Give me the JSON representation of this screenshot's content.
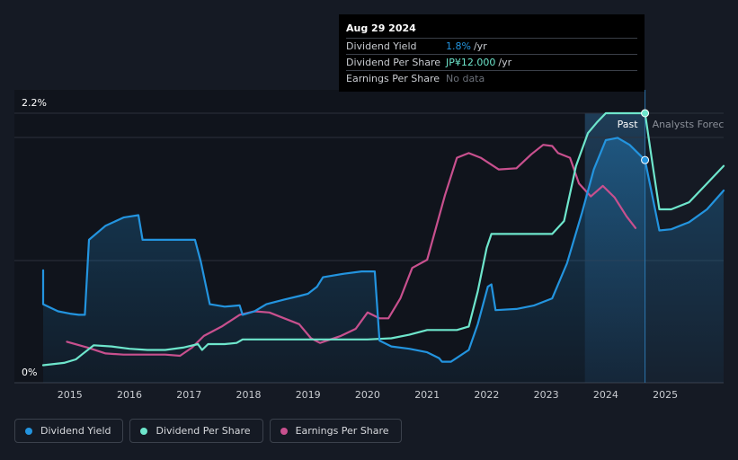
{
  "tooltip": {
    "date": "Aug 29 2024",
    "rows": [
      {
        "label": "Dividend Yield",
        "value": "1.8%",
        "unit": "/yr"
      },
      {
        "label": "Dividend Per Share",
        "value": "JP¥12.000",
        "unit": "/yr"
      },
      {
        "label": "Earnings Per Share",
        "value": "No data",
        "unit": ""
      }
    ]
  },
  "chart": {
    "y_top_label": "2.2%",
    "y_zero_label": "0%",
    "past_label": "Past",
    "forecast_label": "Analysts Forecasts"
  },
  "colors": {
    "background": "#151a24",
    "dividend_yield": "#2394df",
    "dividend_per_share": "#6ee6cc",
    "earnings_per_share": "#c8508e"
  },
  "legend": [
    {
      "label": "Dividend Yield",
      "color": "#2394df"
    },
    {
      "label": "Dividend Per Share",
      "color": "#6ee6cc"
    },
    {
      "label": "Earnings Per Share",
      "color": "#c8508e"
    }
  ],
  "chart_data": {
    "type": "line",
    "x_ticks": [
      "2015",
      "2016",
      "2017",
      "2018",
      "2019",
      "2020",
      "2021",
      "2022",
      "2023",
      "2024",
      "2025"
    ],
    "x_range": [
      2014.55,
      2025.98
    ],
    "y_range": [
      0,
      2.2
    ],
    "y_unit": "%",
    "grid": true,
    "legend_position": "bottom-left",
    "past_until": 2024.66,
    "forecast_start": 2023.65,
    "series": [
      {
        "name": "Dividend Yield",
        "points": [
          [
            2014.55,
            0.86
          ],
          [
            2014.55,
            0.57
          ],
          [
            2014.8,
            0.51
          ],
          [
            2015.0,
            0.49
          ],
          [
            2015.15,
            0.48
          ],
          [
            2015.25,
            0.48
          ],
          [
            2015.32,
            1.12
          ],
          [
            2015.6,
            1.24
          ],
          [
            2015.9,
            1.31
          ],
          [
            2016.15,
            1.33
          ],
          [
            2016.22,
            1.12
          ],
          [
            2016.6,
            1.12
          ],
          [
            2016.9,
            1.12
          ],
          [
            2017.1,
            1.12
          ],
          [
            2017.2,
            0.93
          ],
          [
            2017.35,
            0.57
          ],
          [
            2017.6,
            0.55
          ],
          [
            2017.85,
            0.56
          ],
          [
            2017.9,
            0.48
          ],
          [
            2018.1,
            0.51
          ],
          [
            2018.3,
            0.57
          ],
          [
            2018.6,
            0.61
          ],
          [
            2018.85,
            0.64
          ],
          [
            2019.0,
            0.66
          ],
          [
            2019.15,
            0.72
          ],
          [
            2019.25,
            0.8
          ],
          [
            2019.6,
            0.83
          ],
          [
            2019.9,
            0.85
          ],
          [
            2020.12,
            0.85
          ],
          [
            2020.2,
            0.26
          ],
          [
            2020.4,
            0.21
          ],
          [
            2020.7,
            0.19
          ],
          [
            2021.0,
            0.16
          ],
          [
            2021.2,
            0.11
          ],
          [
            2021.25,
            0.08
          ],
          [
            2021.4,
            0.08
          ],
          [
            2021.7,
            0.18
          ],
          [
            2021.85,
            0.4
          ],
          [
            2022.02,
            0.72
          ],
          [
            2022.08,
            0.74
          ],
          [
            2022.15,
            0.52
          ],
          [
            2022.5,
            0.53
          ],
          [
            2022.8,
            0.56
          ],
          [
            2023.1,
            0.62
          ],
          [
            2023.35,
            0.92
          ],
          [
            2023.6,
            1.35
          ],
          [
            2023.8,
            1.72
          ],
          [
            2024.0,
            1.97
          ],
          [
            2024.2,
            1.99
          ],
          [
            2024.4,
            1.93
          ],
          [
            2024.66,
            1.8
          ],
          [
            2024.9,
            1.2
          ],
          [
            2025.1,
            1.21
          ],
          [
            2025.4,
            1.27
          ],
          [
            2025.7,
            1.38
          ],
          [
            2025.98,
            1.54
          ]
        ]
      },
      {
        "name": "Dividend Per Share",
        "points": [
          [
            2014.55,
            0.05
          ],
          [
            2014.9,
            0.07
          ],
          [
            2015.1,
            0.1
          ],
          [
            2015.2,
            0.14
          ],
          [
            2015.4,
            0.22
          ],
          [
            2015.7,
            0.21
          ],
          [
            2016.0,
            0.19
          ],
          [
            2016.3,
            0.18
          ],
          [
            2016.6,
            0.18
          ],
          [
            2016.9,
            0.2
          ],
          [
            2017.15,
            0.23
          ],
          [
            2017.22,
            0.18
          ],
          [
            2017.32,
            0.23
          ],
          [
            2017.6,
            0.23
          ],
          [
            2017.8,
            0.24
          ],
          [
            2017.9,
            0.27
          ],
          [
            2018.5,
            0.27
          ],
          [
            2019.0,
            0.27
          ],
          [
            2019.5,
            0.27
          ],
          [
            2020.0,
            0.27
          ],
          [
            2020.4,
            0.28
          ],
          [
            2020.7,
            0.31
          ],
          [
            2021.0,
            0.35
          ],
          [
            2021.5,
            0.35
          ],
          [
            2021.7,
            0.38
          ],
          [
            2021.85,
            0.68
          ],
          [
            2022.0,
            1.05
          ],
          [
            2022.08,
            1.17
          ],
          [
            2022.5,
            1.17
          ],
          [
            2022.9,
            1.17
          ],
          [
            2023.1,
            1.17
          ],
          [
            2023.3,
            1.28
          ],
          [
            2023.5,
            1.75
          ],
          [
            2023.7,
            2.03
          ],
          [
            2023.85,
            2.12
          ],
          [
            2024.0,
            2.2
          ],
          [
            2024.33,
            2.2
          ],
          [
            2024.66,
            2.2
          ],
          [
            2024.8,
            1.72
          ],
          [
            2024.9,
            1.38
          ],
          [
            2025.1,
            1.38
          ],
          [
            2025.4,
            1.44
          ],
          [
            2025.7,
            1.6
          ],
          [
            2025.98,
            1.75
          ]
        ]
      },
      {
        "name": "Earnings Per Share",
        "points": [
          [
            2014.95,
            0.25
          ],
          [
            2015.3,
            0.2
          ],
          [
            2015.6,
            0.15
          ],
          [
            2015.9,
            0.14
          ],
          [
            2016.3,
            0.14
          ],
          [
            2016.6,
            0.14
          ],
          [
            2016.85,
            0.13
          ],
          [
            2017.05,
            0.2
          ],
          [
            2017.25,
            0.3
          ],
          [
            2017.55,
            0.38
          ],
          [
            2017.85,
            0.48
          ],
          [
            2018.1,
            0.51
          ],
          [
            2018.35,
            0.5
          ],
          [
            2018.6,
            0.45
          ],
          [
            2018.85,
            0.4
          ],
          [
            2019.05,
            0.28
          ],
          [
            2019.2,
            0.24
          ],
          [
            2019.55,
            0.3
          ],
          [
            2019.8,
            0.36
          ],
          [
            2020.0,
            0.5
          ],
          [
            2020.2,
            0.45
          ],
          [
            2020.35,
            0.45
          ],
          [
            2020.55,
            0.62
          ],
          [
            2020.75,
            0.88
          ],
          [
            2021.0,
            0.95
          ],
          [
            2021.3,
            1.5
          ],
          [
            2021.5,
            1.82
          ],
          [
            2021.7,
            1.86
          ],
          [
            2021.9,
            1.82
          ],
          [
            2022.2,
            1.72
          ],
          [
            2022.5,
            1.73
          ],
          [
            2022.75,
            1.85
          ],
          [
            2022.95,
            1.93
          ],
          [
            2023.1,
            1.92
          ],
          [
            2023.2,
            1.86
          ],
          [
            2023.4,
            1.82
          ],
          [
            2023.55,
            1.6
          ],
          [
            2023.75,
            1.49
          ],
          [
            2023.95,
            1.58
          ],
          [
            2024.15,
            1.48
          ],
          [
            2024.35,
            1.32
          ],
          [
            2024.5,
            1.22
          ]
        ]
      }
    ]
  }
}
